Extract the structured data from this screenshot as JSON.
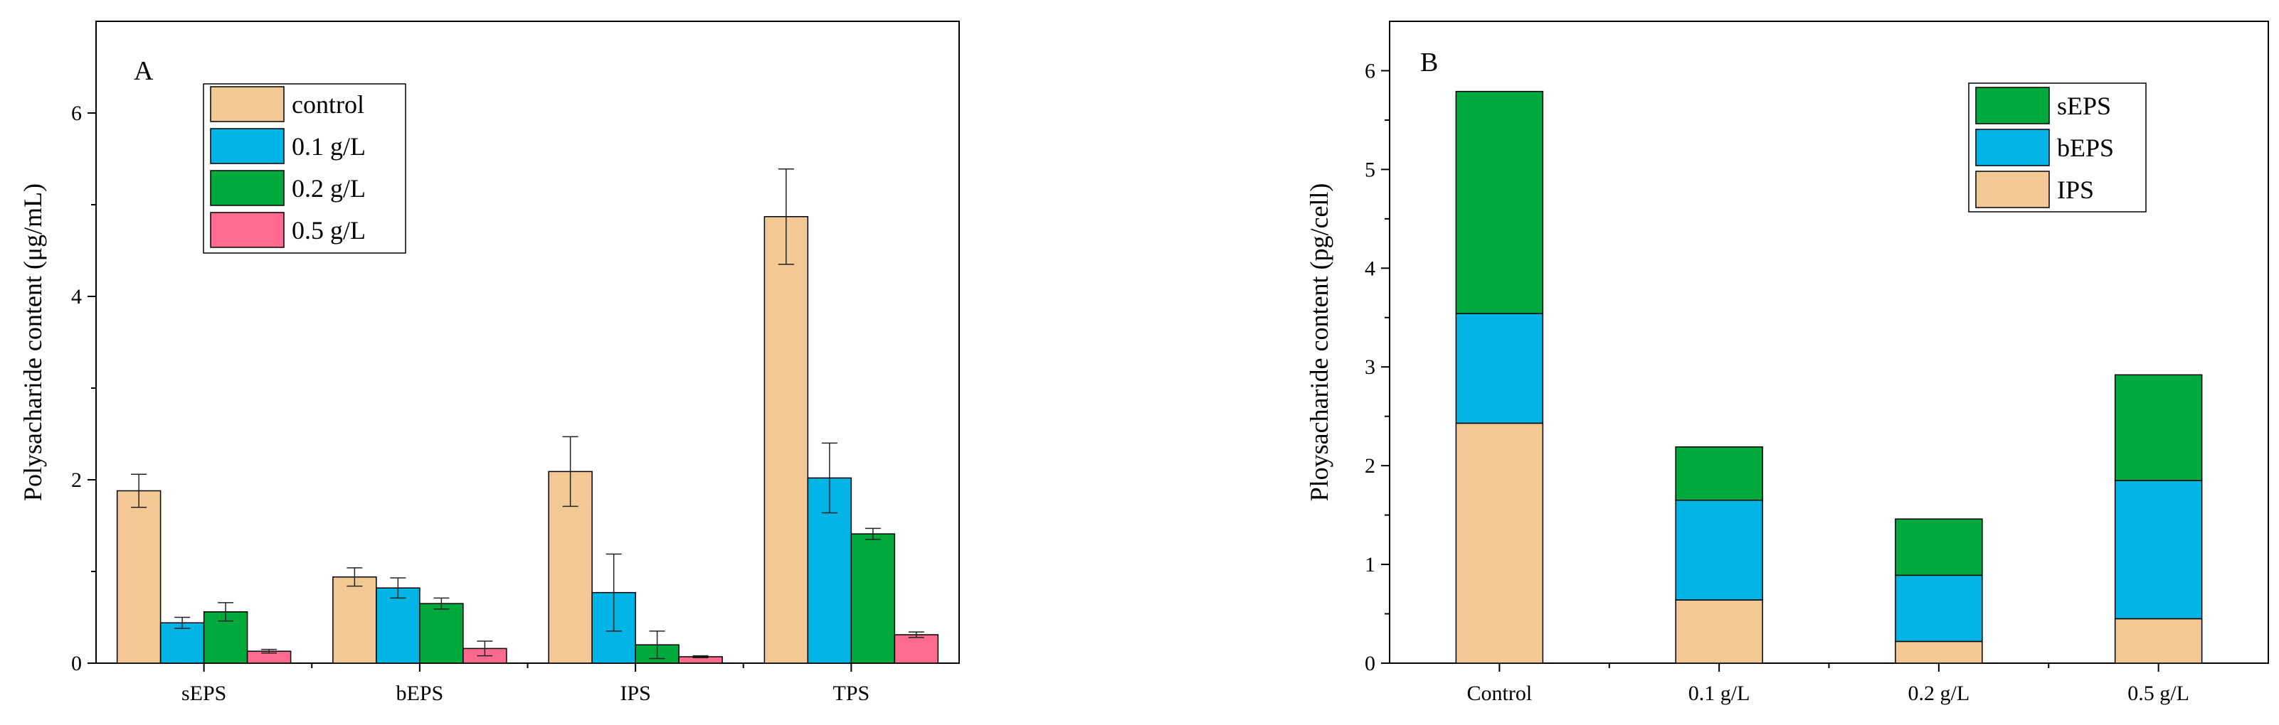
{
  "chart_data": [
    {
      "type": "bar",
      "panel_label": "A",
      "title": "",
      "xlabel": "",
      "ylabel": "Polysacharide content (μg/mL)",
      "ylim": [
        0,
        7
      ],
      "yticks": [
        0,
        2,
        4,
        6
      ],
      "categories": [
        "sEPS",
        "bEPS",
        "IPS",
        "TPS"
      ],
      "legend_position": "top-left",
      "series": [
        {
          "name": "control",
          "color": "#F2C894",
          "values": [
            1.88,
            0.94,
            2.09,
            4.87
          ],
          "errors": [
            0.18,
            0.1,
            0.38,
            0.52
          ]
        },
        {
          "name": "0.1 g/L",
          "color": "#00B4E6",
          "values": [
            0.44,
            0.82,
            0.77,
            2.02
          ],
          "errors": [
            0.06,
            0.11,
            0.42,
            0.38
          ]
        },
        {
          "name": "0.2 g/L",
          "color": "#00A93C",
          "values": [
            0.56,
            0.65,
            0.2,
            1.41
          ],
          "errors": [
            0.1,
            0.06,
            0.15,
            0.06
          ]
        },
        {
          "name": "0.5 g/L",
          "color": "#FF6A8E",
          "values": [
            0.13,
            0.16,
            0.07,
            0.31
          ],
          "errors": [
            0.02,
            0.08,
            0.01,
            0.03
          ]
        }
      ]
    },
    {
      "type": "bar",
      "stacked": true,
      "panel_label": "B",
      "title": "",
      "xlabel": "",
      "ylabel": "Ploysacharide content (pg/cell)",
      "ylim": [
        0,
        6.5
      ],
      "yticks": [
        0,
        1,
        2,
        3,
        4,
        5,
        6
      ],
      "categories": [
        "Control",
        "0.1 g/L",
        "0.2 g/L",
        "0.5 g/L"
      ],
      "legend_position": "top-right",
      "series": [
        {
          "name": "IPS",
          "color": "#F2C894",
          "values": [
            2.43,
            0.64,
            0.22,
            0.45
          ]
        },
        {
          "name": "bEPS",
          "color": "#00B4E6",
          "values": [
            1.11,
            1.01,
            0.67,
            1.4
          ]
        },
        {
          "name": "sEPS",
          "color": "#00A93C",
          "values": [
            2.25,
            0.54,
            0.57,
            1.07
          ]
        }
      ],
      "legend_order": [
        "sEPS",
        "bEPS",
        "IPS"
      ]
    }
  ]
}
